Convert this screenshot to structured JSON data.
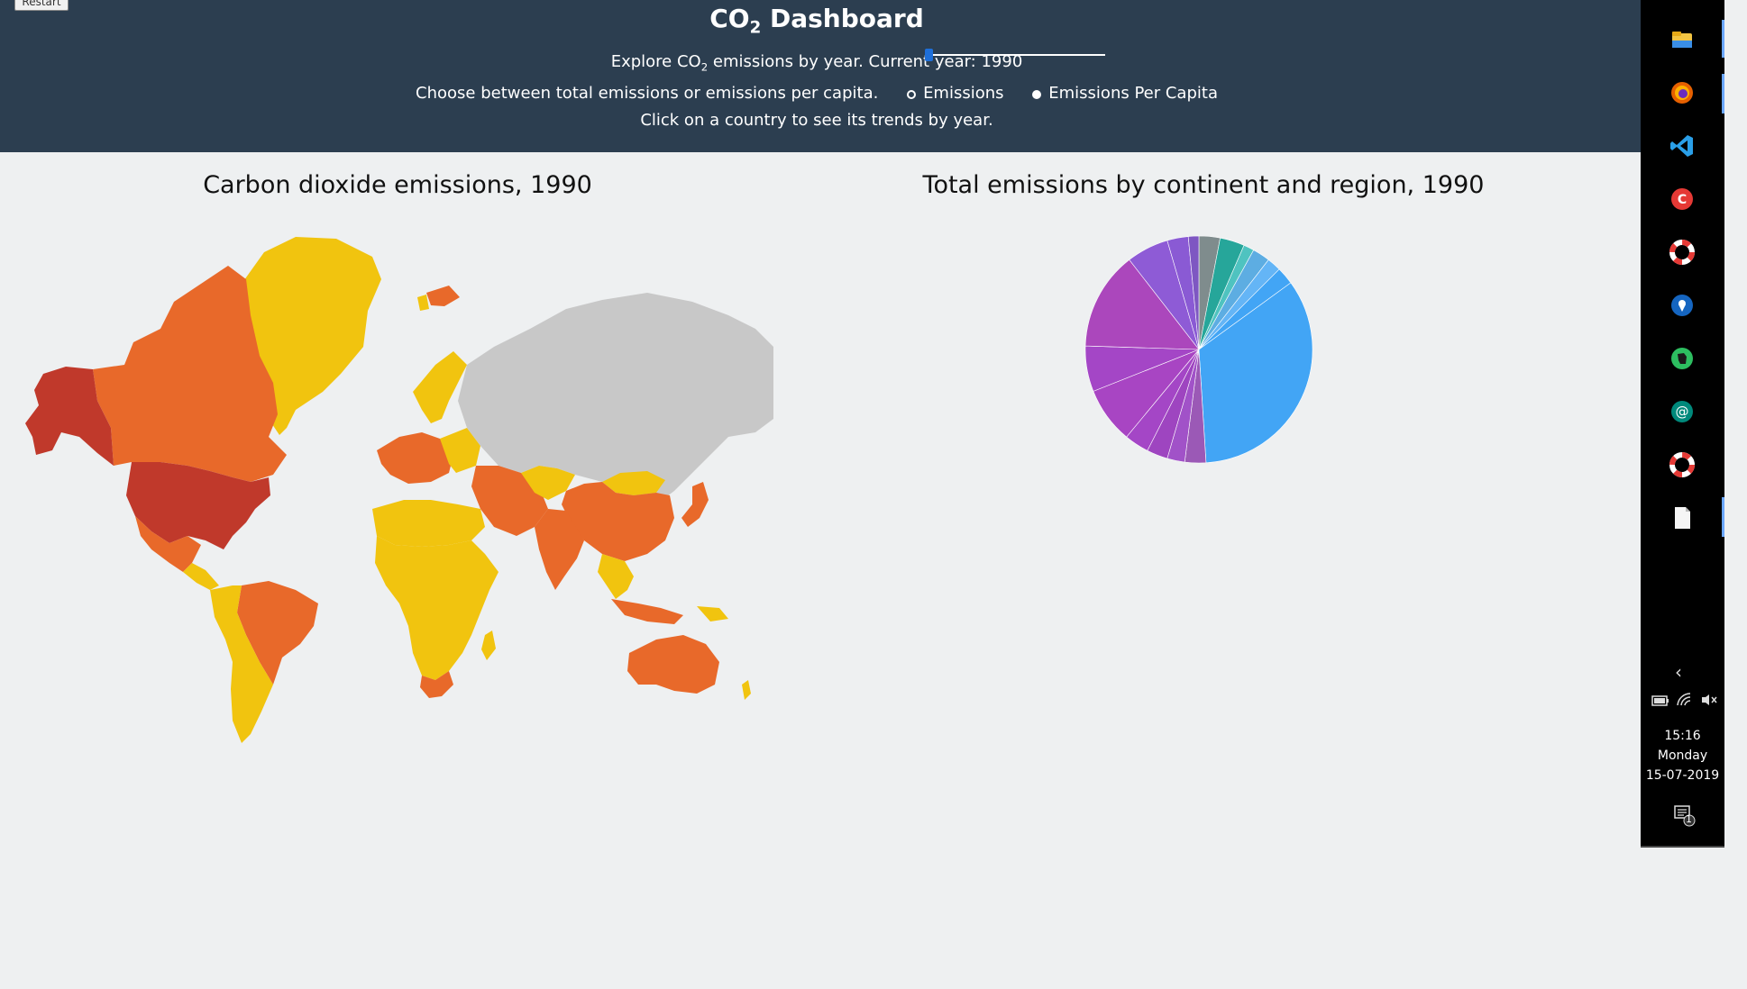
{
  "header": {
    "restart_label": "Restart",
    "title_prefix": "CO",
    "title_sub": "2",
    "title_suffix": " Dashboard",
    "year_prefix": "Explore CO",
    "year_sub": "2",
    "year_middle": " emissions by year. Current year: ",
    "year_value": "1990",
    "mode_text": "Choose between total emissions or emissions per capita.",
    "radio_emissions": "Emissions",
    "radio_per_capita": "Emissions Per Capita",
    "selected_mode": "Emissions",
    "hint_text": "Click on a country to see its trends by year."
  },
  "slider": {
    "year": 1990,
    "min": 1990,
    "max": 2014
  },
  "map": {
    "title": "Carbon dioxide emissions, 1990",
    "color_scale": [
      "#c0392b",
      "#e8692a",
      "#f1c40f",
      "#c8c8c8"
    ],
    "no_data_color": "#c8c8c8"
  },
  "chart_data": {
    "type": "pie",
    "title": "Total emissions by continent and region, 1990",
    "slices": [
      {
        "value": 3.0,
        "color": "#7f8c8d"
      },
      {
        "value": 3.5,
        "color": "#26a69a"
      },
      {
        "value": 1.5,
        "color": "#4fc3c0"
      },
      {
        "value": 2.5,
        "color": "#5dade2"
      },
      {
        "value": 2.0,
        "color": "#64b5f6"
      },
      {
        "value": 2.5,
        "color": "#42a5f5"
      },
      {
        "value": 34.0,
        "color": "#42a5f5"
      },
      {
        "value": 3.0,
        "color": "#9b59b6"
      },
      {
        "value": 2.5,
        "color": "#a152c8"
      },
      {
        "value": 3.0,
        "color": "#9e45c0"
      },
      {
        "value": 3.5,
        "color": "#a446c6"
      },
      {
        "value": 8.0,
        "color": "#a845c3"
      },
      {
        "value": 6.5,
        "color": "#a446c6"
      },
      {
        "value": 14.0,
        "color": "#ab47bc"
      },
      {
        "value": 6.0,
        "color": "#8e5bd6"
      },
      {
        "value": 3.0,
        "color": "#8a5ad4"
      },
      {
        "value": 1.5,
        "color": "#7e57c2"
      }
    ]
  },
  "taskbar": {
    "icons": [
      "file-explorer-icon",
      "firefox-icon",
      "vscode-icon",
      "red-app-icon",
      "lifebuoy-icon",
      "location-pin-icon",
      "evernote-icon",
      "at-sign-icon",
      "lifebuoy-icon-2",
      "document-icon"
    ],
    "time": "15:16",
    "day": "Monday",
    "date": "15-07-2019",
    "notification_count": "1"
  }
}
